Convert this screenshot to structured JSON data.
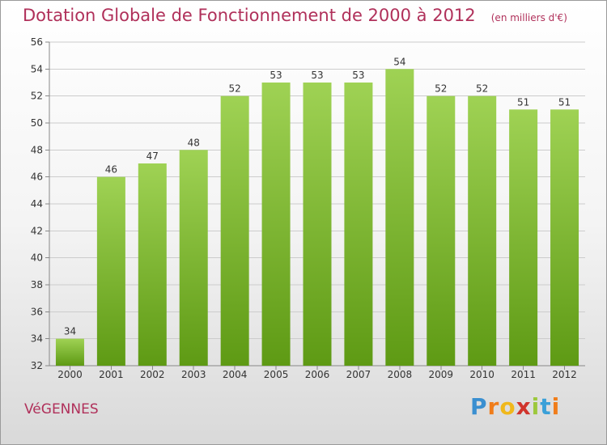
{
  "header": {
    "title": "Dotation Globale de Fonctionnement de 2000 à 2012",
    "subtitle": "(en milliers d'€)"
  },
  "footer": {
    "city": "VéGENNES",
    "brand_letters": [
      "P",
      "r",
      "o",
      "x",
      "i",
      "t",
      "i"
    ],
    "brand_colors": [
      "#3a8fd0",
      "#f07d1b",
      "#f0b81b",
      "#d0342c",
      "#9cc83c",
      "#3aa0d8",
      "#f07d1b"
    ]
  },
  "chart_data": {
    "type": "bar",
    "title": "Dotation Globale de Fonctionnement de 2000 à 2012",
    "subtitle": "(en milliers d'€)",
    "categories": [
      "2000",
      "2001",
      "2002",
      "2003",
      "2004",
      "2005",
      "2006",
      "2007",
      "2008",
      "2009",
      "2010",
      "2011",
      "2012"
    ],
    "values": [
      34,
      46,
      47,
      48,
      52,
      53,
      53,
      53,
      54,
      52,
      52,
      51,
      51
    ],
    "ylim": [
      32,
      56
    ],
    "yticks": [
      32,
      34,
      36,
      38,
      40,
      42,
      44,
      46,
      48,
      50,
      52,
      54,
      56
    ],
    "grid": true,
    "colors": {
      "bar_top": "#9fd254",
      "bar_bottom": "#5e9a14",
      "grid": "#cccccc",
      "axis": "#888888",
      "text": "#333333"
    }
  }
}
